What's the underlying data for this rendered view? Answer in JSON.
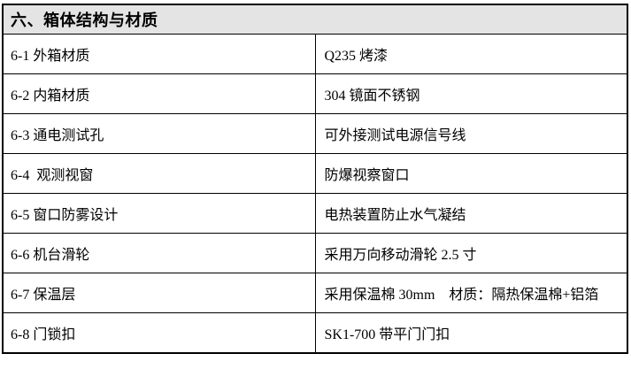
{
  "page": {
    "background": "#ffffff",
    "border_color": "#000000",
    "header_bg": "#e4e4e4"
  },
  "table": {
    "title": "六、箱体结构与材质",
    "rows": [
      {
        "item": "6-1 外箱材质",
        "value": "Q235 烤漆"
      },
      {
        "item": "6-2 内箱材质",
        "value": "304 镜面不锈钢"
      },
      {
        "item": "6-3 通电测试孔",
        "value": "可外接测试电源信号线"
      },
      {
        "item": "6-4  观测视窗",
        "value": "防爆视察窗口"
      },
      {
        "item": "6-5 窗口防雾设计",
        "value": "电热装置防止水气凝结"
      },
      {
        "item": "6-6 机台滑轮",
        "value": "采用万向移动滑轮 2.5 寸"
      },
      {
        "item": "6-7 保温层",
        "value": "采用保温棉 30mm    材质：隔热保温棉+铝箔"
      },
      {
        "item": "6-8 门锁扣",
        "value": "SK1-700 带平门门扣"
      }
    ]
  }
}
